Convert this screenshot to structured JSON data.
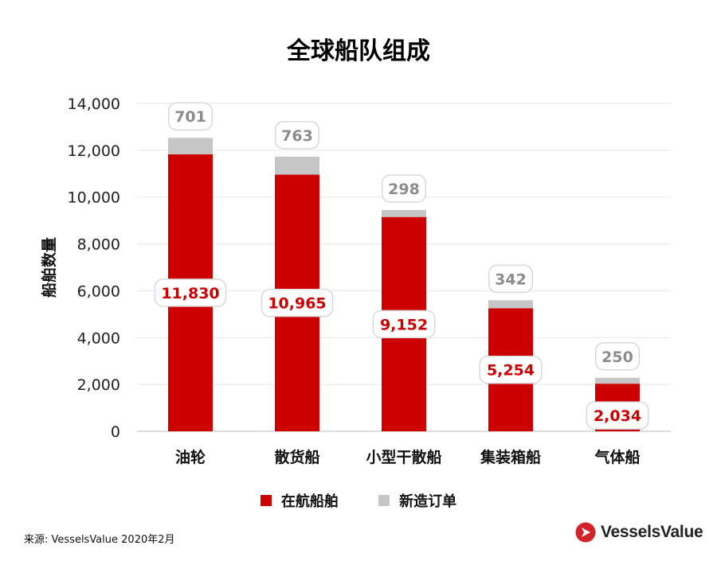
{
  "chart_data": {
    "type": "bar",
    "stacked": true,
    "title": "全球船队组成",
    "xlabel": "",
    "ylabel": "船舶数量",
    "ylim": [
      0,
      14000
    ],
    "yticks": [
      0,
      2000,
      4000,
      6000,
      8000,
      10000,
      12000,
      14000
    ],
    "ytick_labels": [
      "0",
      "2,000",
      "4,000",
      "6,000",
      "8,000",
      "10,000",
      "12,000",
      "14,000"
    ],
    "categories": [
      "油轮",
      "散货船",
      "小型干散船",
      "集装箱船",
      "气体船"
    ],
    "series": [
      {
        "name": "在航船舶",
        "color": "#cc0000",
        "values": [
          11830,
          10965,
          9152,
          5254,
          2034
        ],
        "labels": [
          "11,830",
          "10,965",
          "9,152",
          "5,254",
          "2,034"
        ]
      },
      {
        "name": "新造订单",
        "color": "#c6c6c6",
        "values": [
          701,
          763,
          298,
          342,
          250
        ],
        "labels": [
          "701",
          "763",
          "298",
          "342",
          "250"
        ]
      }
    ],
    "legend_position": "bottom"
  },
  "source": "来源: VesselsValue 2020年2月",
  "brand": "VesselsValue",
  "colors": {
    "brand_red": "#d2232a"
  }
}
